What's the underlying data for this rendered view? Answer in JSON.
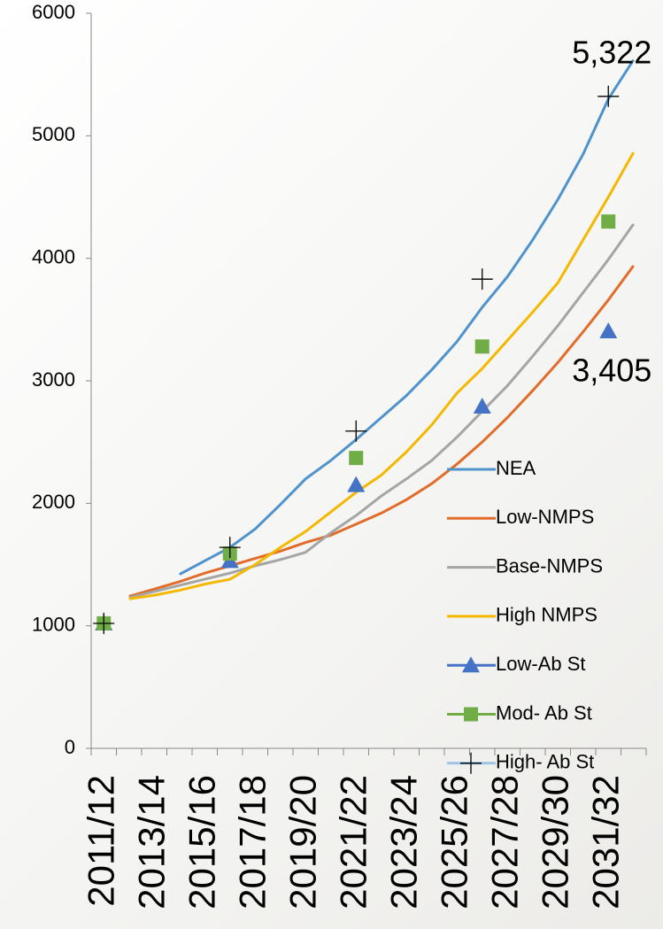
{
  "chart_data": {
    "type": "line",
    "categories": [
      "2011/12",
      null,
      "2013/14",
      null,
      "2015/16",
      null,
      "2017/18",
      null,
      "2019/20",
      null,
      "2021/22",
      null,
      "2023/24",
      null,
      "2025/26",
      null,
      "2027/28",
      null,
      "2029/30",
      null,
      "2031/32",
      null
    ],
    "series": [
      {
        "name": "NEA",
        "color": "#4f93cc",
        "marker": "none",
        "values": [
          null,
          null,
          null,
          1420,
          1530,
          1640,
          1790,
          1990,
          2200,
          2350,
          2520,
          2700,
          2880,
          3090,
          3320,
          3600,
          3850,
          4150,
          4480,
          4850,
          5300,
          5620
        ]
      },
      {
        "name": "Low-NMPS",
        "color": "#e36c2a",
        "marker": "none",
        "values": [
          null,
          1240,
          1300,
          1360,
          1430,
          1490,
          1550,
          1610,
          1680,
          1740,
          1830,
          1920,
          2030,
          2160,
          2320,
          2500,
          2700,
          2920,
          3150,
          3400,
          3660,
          3940
        ]
      },
      {
        "name": "Base-NMPS",
        "color": "#a5a5a5",
        "marker": "none",
        "values": [
          null,
          1230,
          1280,
          1330,
          1380,
          1430,
          1490,
          1540,
          1600,
          1760,
          1900,
          2060,
          2200,
          2350,
          2540,
          2750,
          2960,
          3200,
          3450,
          3720,
          3990,
          4280
        ]
      },
      {
        "name": "High NMPS",
        "color": "#f5b800",
        "marker": "none",
        "values": [
          null,
          1220,
          1250,
          1290,
          1340,
          1380,
          1500,
          1640,
          1770,
          1930,
          2090,
          2230,
          2420,
          2640,
          2900,
          3100,
          3330,
          3560,
          3800,
          4150,
          4500,
          4865
        ]
      },
      {
        "name": "Low-Ab St",
        "color": "#4472c4",
        "marker": "triangle",
        "values": [
          1020,
          null,
          null,
          null,
          null,
          1530,
          null,
          null,
          null,
          null,
          2150,
          null,
          null,
          null,
          null,
          2790,
          null,
          null,
          null,
          null,
          3405,
          null
        ],
        "value_labels": [
          null,
          null,
          null,
          null,
          null,
          null,
          null,
          null,
          null,
          null,
          null,
          null,
          null,
          null,
          null,
          null,
          null,
          null,
          null,
          null,
          "3,405",
          null
        ]
      },
      {
        "name": "Mod- Ab St",
        "color": "#70ad47",
        "marker": "square",
        "values": [
          1020,
          null,
          null,
          null,
          null,
          1590,
          null,
          null,
          null,
          null,
          2370,
          null,
          null,
          null,
          null,
          3280,
          null,
          null,
          null,
          null,
          4300,
          null
        ]
      },
      {
        "name": "High- Ab St",
        "color": "#9dc3e6",
        "marker": "plus",
        "values": [
          1020,
          null,
          null,
          null,
          null,
          1640,
          null,
          null,
          null,
          null,
          2590,
          null,
          null,
          null,
          null,
          3830,
          null,
          null,
          null,
          null,
          5322,
          null
        ],
        "value_labels": [
          null,
          null,
          null,
          null,
          null,
          null,
          null,
          null,
          null,
          null,
          null,
          null,
          null,
          null,
          null,
          null,
          null,
          null,
          null,
          null,
          "5,322",
          null
        ]
      }
    ],
    "ylim": [
      0,
      6000
    ],
    "yticks": [
      0,
      1000,
      2000,
      3000,
      4000,
      5000,
      6000
    ],
    "grid": false
  }
}
